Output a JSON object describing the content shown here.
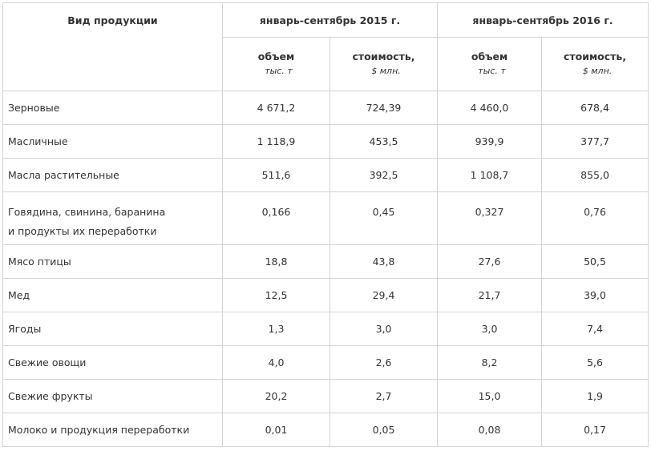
{
  "header": {
    "product_col": "Вид продукции",
    "period1": "январь-сентябрь 2015 г.",
    "period2": "январь-сентябрь 2016 г.",
    "volume_label": "объем",
    "volume_unit": "тыс. т",
    "cost_label": "стоимость,",
    "cost_unit": "$ млн."
  },
  "rows": [
    {
      "name": "Зерновые",
      "v2015": "4 671,2",
      "c2015": "724,39",
      "v2016": "4 460,0",
      "c2016": "678,4"
    },
    {
      "name": "Масличные",
      "v2015": "1 118,9",
      "c2015": "453,5",
      "v2016": "939,9",
      "c2016": "377,7"
    },
    {
      "name": "Масла растительные",
      "v2015": "511,6",
      "c2015": "392,5",
      "v2016": "1 108,7",
      "c2016": "855,0"
    },
    {
      "name_line1": "Говядина, свинина, баранина",
      "name_line2": "и продукты их переработки",
      "v2015": "0,166",
      "c2015": "0,45",
      "v2016": "0,327",
      "c2016": "0,76"
    },
    {
      "name": "Мясо птицы",
      "v2015": "18,8",
      "c2015": "43,8",
      "v2016": "27,6",
      "c2016": "50,5"
    },
    {
      "name": "Мед",
      "v2015": "12,5",
      "c2015": "29,4",
      "v2016": "21,7",
      "c2016": "39,0"
    },
    {
      "name": "Ягоды",
      "v2015": "1,3",
      "c2015": "3,0",
      "v2016": "3,0",
      "c2016": "7,4"
    },
    {
      "name": "Свежие овощи",
      "v2015": "4,0",
      "c2015": "2,6",
      "v2016": "8,2",
      "c2016": "5,6"
    },
    {
      "name": "Свежие фрукты",
      "v2015": "20,2",
      "c2015": "2,7",
      "v2016": "15,0",
      "c2016": "1,9"
    },
    {
      "name": "Молоко и продукция переработки",
      "v2015": "0,01",
      "c2015": "0,05",
      "v2016": "0,08",
      "c2016": "0,17"
    }
  ]
}
